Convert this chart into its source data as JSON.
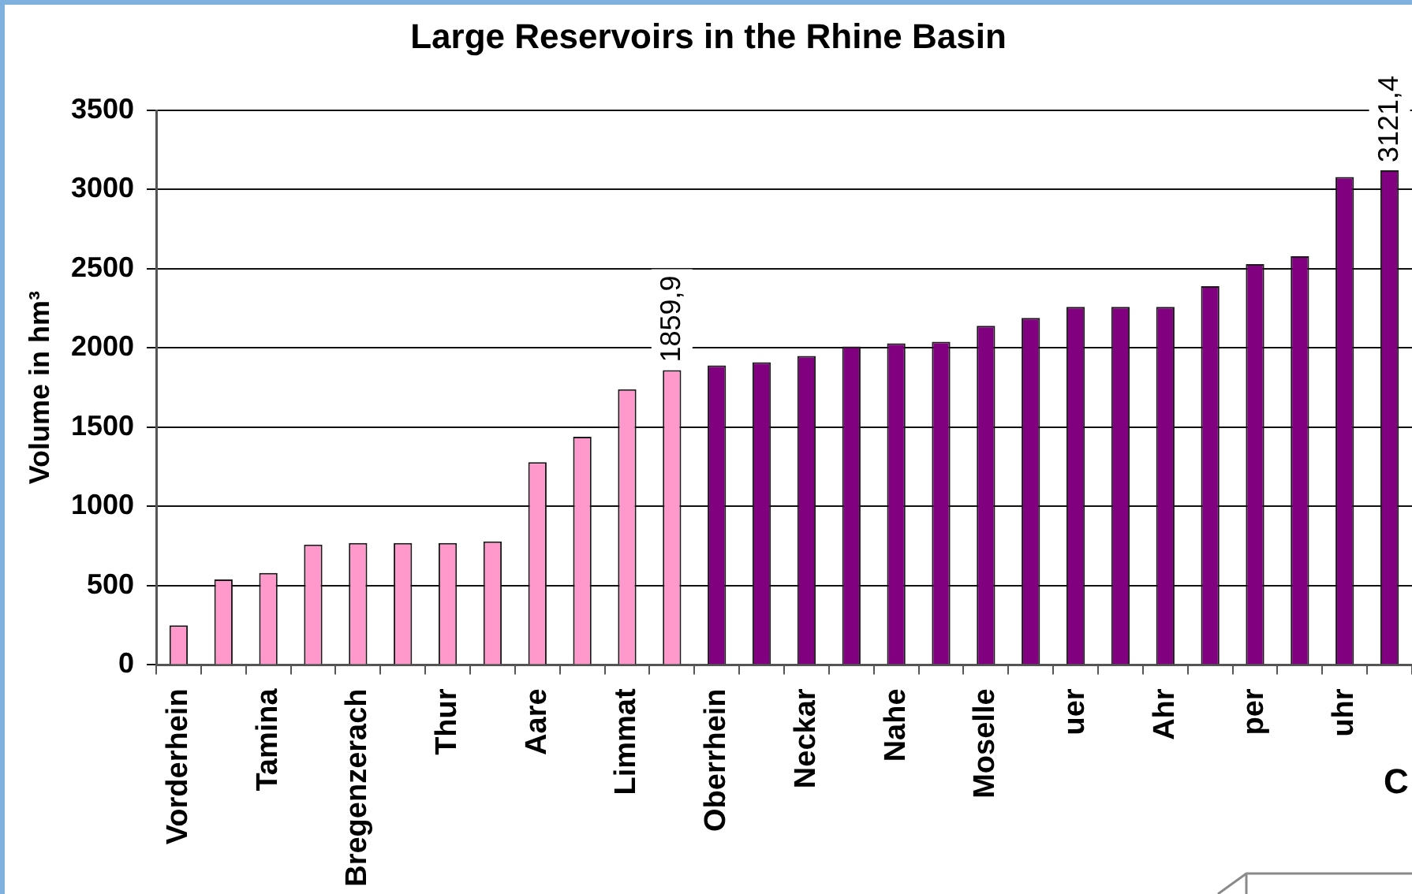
{
  "chart_data": {
    "type": "bar",
    "title": "Large Reservoirs in the Rhine Basin",
    "ylabel": "Volume in hm³",
    "categories": [
      "Vorderhein",
      null,
      "Tamina",
      null,
      "Bregenzerach",
      null,
      "Thur",
      null,
      "Aare",
      null,
      "Limmat",
      null,
      "Oberrhein",
      null,
      "Neckar",
      null,
      "Nahe",
      null,
      "Moselle",
      null,
      "uer",
      null,
      "Ahr",
      null,
      "per",
      null,
      "uhr",
      null
    ],
    "values": [
      250,
      540,
      580,
      760,
      770,
      770,
      770,
      780,
      1280,
      1440,
      1740,
      1859.9,
      1890,
      1910,
      1950,
      2010,
      2030,
      2040,
      2140,
      2190,
      2260,
      2260,
      2260,
      2390,
      2530,
      2580,
      3080,
      3121.4
    ],
    "colors": [
      "#ff99cc",
      "#ff99cc",
      "#ff99cc",
      "#ff99cc",
      "#ff99cc",
      "#ff99cc",
      "#ff99cc",
      "#ff99cc",
      "#ff99cc",
      "#ff99cc",
      "#ff99cc",
      "#ff99cc",
      "#800080",
      "#800080",
      "#800080",
      "#800080",
      "#800080",
      "#800080",
      "#800080",
      "#800080",
      "#800080",
      "#800080",
      "#800080",
      "#800080",
      "#800080",
      "#800080",
      "#800080",
      "#800080"
    ],
    "value_labels": [
      null,
      null,
      null,
      null,
      null,
      null,
      null,
      null,
      null,
      null,
      null,
      "1859,9",
      null,
      null,
      null,
      null,
      null,
      null,
      null,
      null,
      null,
      null,
      null,
      null,
      null,
      null,
      null,
      "3121,4"
    ],
    "ylim": [
      0,
      3500
    ],
    "yticks": [
      0,
      500,
      1000,
      1500,
      2000,
      2500,
      3000,
      3500
    ],
    "grid": "y",
    "annotations": [
      "C"
    ]
  }
}
